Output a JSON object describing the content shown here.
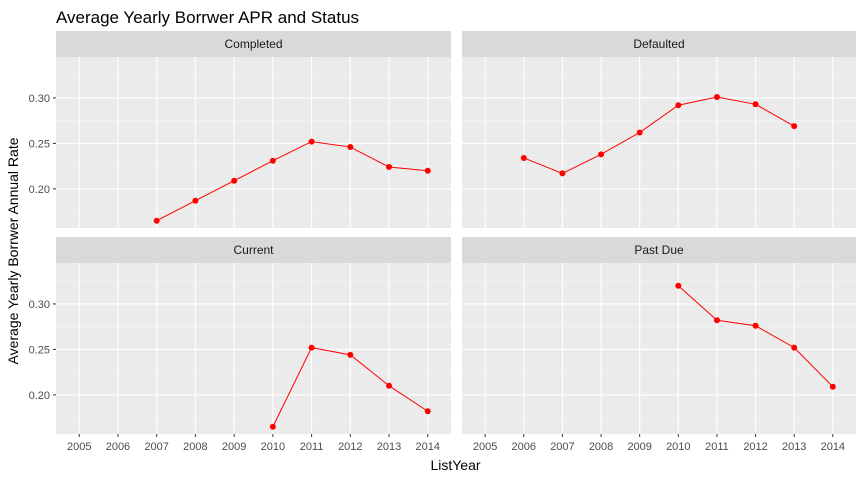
{
  "chart_data": {
    "type": "line",
    "title": "Average Yearly Borrwer APR and Status",
    "xlabel": "ListYear",
    "ylabel": "Average Yearly Borrwer Annual Rate",
    "x": [
      2005,
      2006,
      2007,
      2008,
      2009,
      2010,
      2011,
      2012,
      2013,
      2014
    ],
    "x_ticks": [
      "2005",
      "2006",
      "2007",
      "2008",
      "2009",
      "2010",
      "2011",
      "2012",
      "2013",
      "2014"
    ],
    "xlim": [
      2004.4,
      2014.6
    ],
    "ylim": [
      0.157,
      0.345
    ],
    "y_ticks": [
      0.2,
      0.25,
      0.3
    ],
    "y_tick_labels": [
      "0.20",
      "0.25",
      "0.30"
    ],
    "grid": true,
    "series_color": "#ff0000",
    "panels": [
      {
        "label": "Completed",
        "points": [
          {
            "x": 2007,
            "y": 0.165
          },
          {
            "x": 2008,
            "y": 0.187
          },
          {
            "x": 2009,
            "y": 0.209
          },
          {
            "x": 2010,
            "y": 0.231
          },
          {
            "x": 2011,
            "y": 0.252
          },
          {
            "x": 2012,
            "y": 0.246
          },
          {
            "x": 2013,
            "y": 0.224
          },
          {
            "x": 2014,
            "y": 0.22
          }
        ]
      },
      {
        "label": "Defaulted",
        "points": [
          {
            "x": 2006,
            "y": 0.234
          },
          {
            "x": 2007,
            "y": 0.217
          },
          {
            "x": 2008,
            "y": 0.238
          },
          {
            "x": 2009,
            "y": 0.262
          },
          {
            "x": 2010,
            "y": 0.292
          },
          {
            "x": 2011,
            "y": 0.301
          },
          {
            "x": 2012,
            "y": 0.293
          },
          {
            "x": 2013,
            "y": 0.269
          }
        ]
      },
      {
        "label": "Current",
        "points": [
          {
            "x": 2010,
            "y": 0.165
          },
          {
            "x": 2011,
            "y": 0.252
          },
          {
            "x": 2012,
            "y": 0.244
          },
          {
            "x": 2013,
            "y": 0.21
          },
          {
            "x": 2014,
            "y": 0.182
          }
        ]
      },
      {
        "label": "Past Due",
        "points": [
          {
            "x": 2010,
            "y": 0.32
          },
          {
            "x": 2011,
            "y": 0.282
          },
          {
            "x": 2012,
            "y": 0.276
          },
          {
            "x": 2013,
            "y": 0.252
          },
          {
            "x": 2014,
            "y": 0.209
          }
        ]
      }
    ]
  }
}
